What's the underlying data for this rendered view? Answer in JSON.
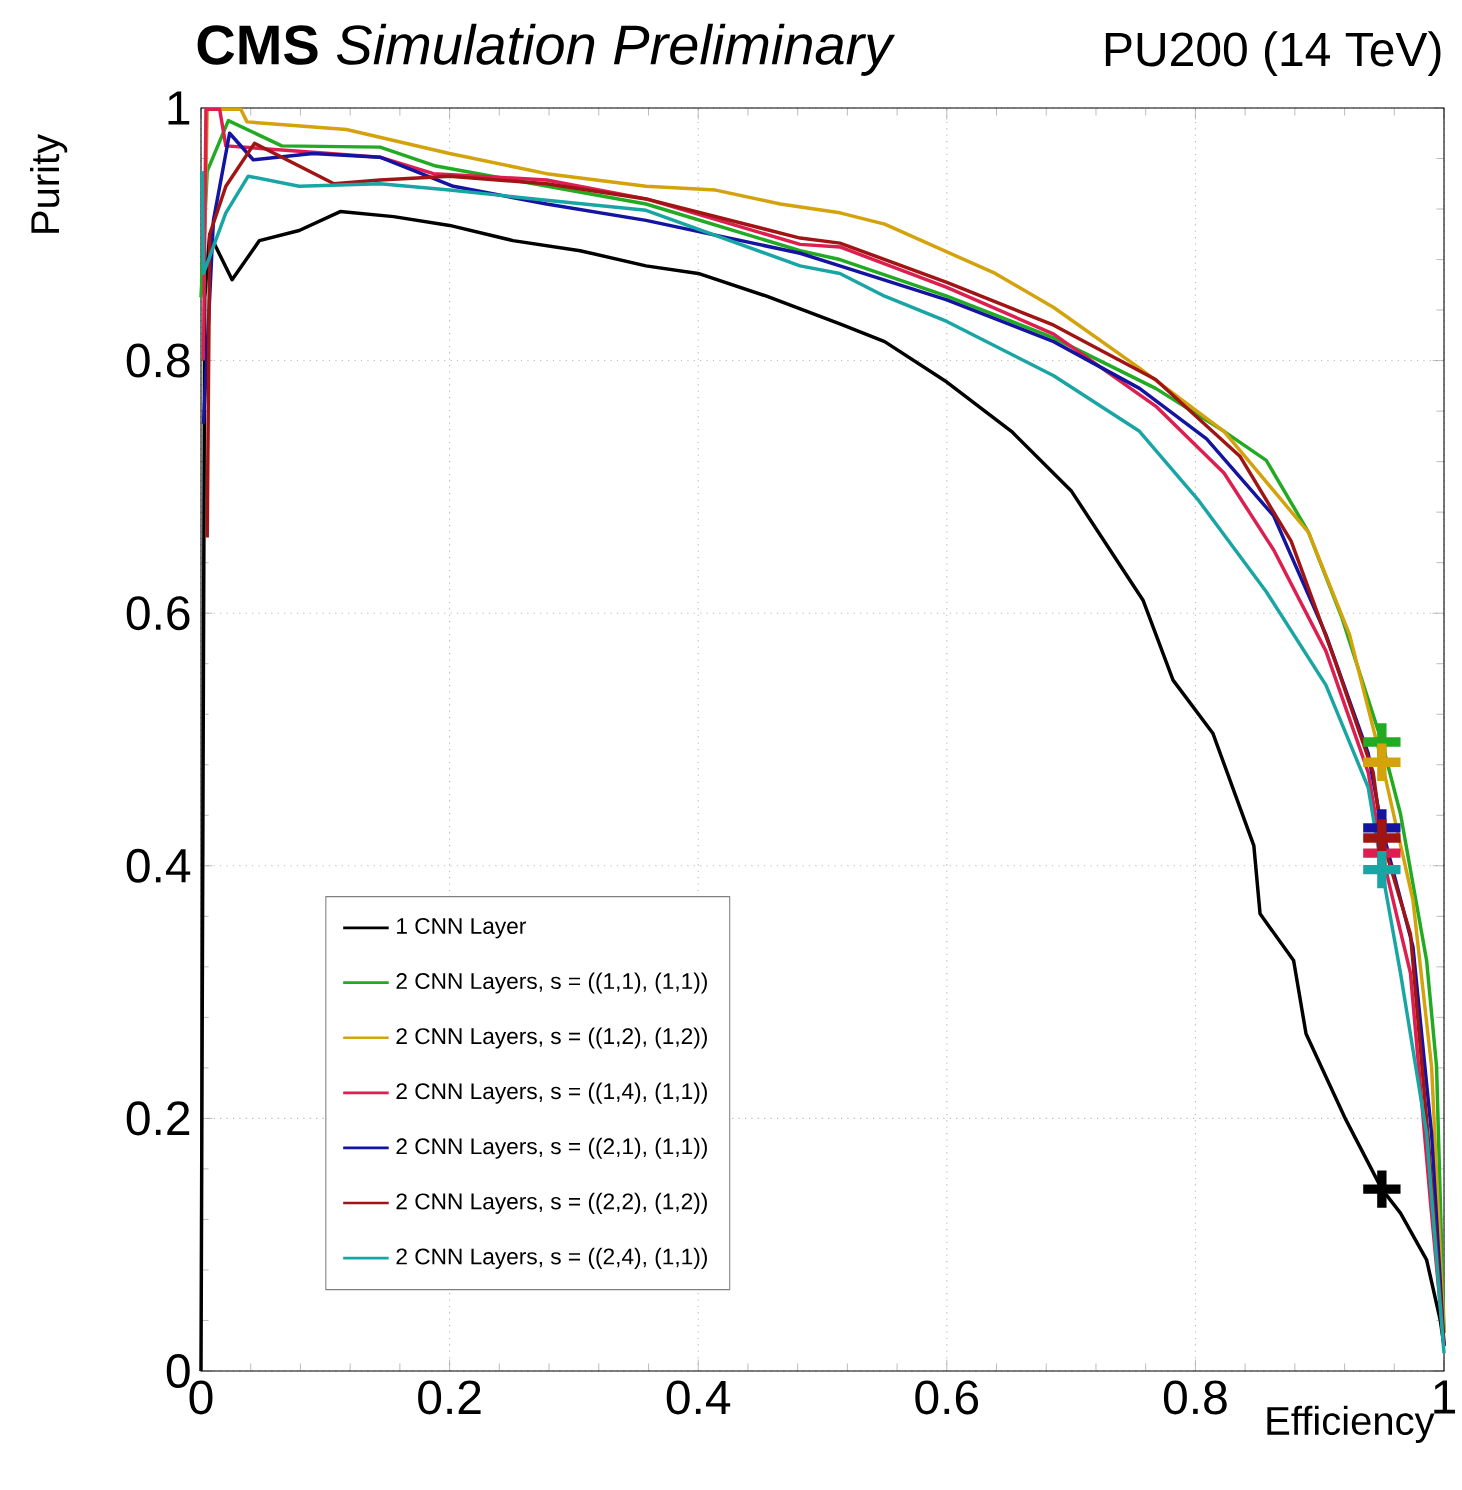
{
  "chart_data": {
    "type": "line",
    "title": "**CMS** *Simulation Preliminary*",
    "subtitle": "PU200 (14 TeV)",
    "xlabel": "Efficiency",
    "ylabel": "Purity",
    "xlim": [
      0,
      1
    ],
    "ylim": [
      0,
      1
    ],
    "xticks": [
      0,
      0.2,
      0.4,
      0.6,
      0.8,
      1
    ],
    "yticks": [
      0,
      0.2,
      0.4,
      0.6,
      0.8,
      1
    ],
    "grid": true,
    "legend": "bottom left",
    "line_style": "solid",
    "series": [
      {
        "name": "1 CNN Layer",
        "color": "#000000",
        "x": [
          0,
          0.003,
          0.007,
          0.025,
          0.047,
          0.079,
          0.112,
          0.155,
          0.2,
          0.251,
          0.305,
          0.358,
          0.4,
          0.455,
          0.514,
          0.55,
          0.6,
          0.652,
          0.7,
          0.758,
          0.782,
          0.814,
          0.847,
          0.852,
          0.879,
          0.889,
          0.921,
          0.95,
          0.965,
          0.986,
          0.997,
          1
        ],
        "values": [
          0,
          0.85,
          0.9,
          0.864,
          0.895,
          0.903,
          0.918,
          0.914,
          0.907,
          0.895,
          0.887,
          0.875,
          0.869,
          0.851,
          0.829,
          0.815,
          0.783,
          0.744,
          0.697,
          0.61,
          0.547,
          0.505,
          0.416,
          0.362,
          0.325,
          0.267,
          0.199,
          0.144,
          0.125,
          0.088,
          0.04,
          0.02
        ]
      },
      {
        "name": "2 CNN Layers, s = ((1,1), (1,1))",
        "color": "#22aa22",
        "x": [
          0,
          0.005,
          0.022,
          0.065,
          0.144,
          0.189,
          0.251,
          0.358,
          0.482,
          0.514,
          0.6,
          0.686,
          0.768,
          0.823,
          0.857,
          0.891,
          0.918,
          0.95,
          0.965,
          0.986,
          0.994,
          1
        ],
        "values": [
          0.85,
          0.95,
          0.99,
          0.97,
          0.969,
          0.954,
          0.943,
          0.924,
          0.887,
          0.88,
          0.851,
          0.818,
          0.778,
          0.744,
          0.721,
          0.664,
          0.596,
          0.498,
          0.441,
          0.325,
          0.241,
          0.03
        ]
      },
      {
        "name": "2 CNN Layers, s = ((1,2), (1,2))",
        "color": "#d4a20b",
        "x": [
          0.003,
          0.005,
          0.032,
          0.037,
          0.117,
          0.2,
          0.278,
          0.358,
          0.414,
          0.466,
          0.514,
          0.55,
          0.639,
          0.686,
          0.755,
          0.823,
          0.891,
          0.924,
          0.95,
          0.975,
          0.99,
          1
        ],
        "values": [
          0.9,
          0.999,
          0.999,
          0.989,
          0.983,
          0.964,
          0.948,
          0.938,
          0.935,
          0.924,
          0.917,
          0.908,
          0.869,
          0.842,
          0.794,
          0.744,
          0.664,
          0.583,
          0.482,
          0.373,
          0.241,
          0.03
        ]
      },
      {
        "name": "2 CNN Layers, s = ((1,4), (1,1))",
        "color": "#dc1e50",
        "x": [
          0.002,
          0.004,
          0.015,
          0.02,
          0.09,
          0.144,
          0.187,
          0.278,
          0.358,
          0.482,
          0.514,
          0.6,
          0.686,
          0.768,
          0.823,
          0.863,
          0.905,
          0.939,
          0.95,
          0.973,
          0.989,
          1
        ],
        "values": [
          0.8,
          0.999,
          0.999,
          0.97,
          0.965,
          0.961,
          0.948,
          0.943,
          0.928,
          0.892,
          0.89,
          0.858,
          0.821,
          0.764,
          0.711,
          0.65,
          0.57,
          0.474,
          0.41,
          0.315,
          0.135,
          0.02
        ]
      },
      {
        "name": "2 CNN Layers, s = ((2,1), (1,1))",
        "color": "#1414a0",
        "x": [
          0.002,
          0.01,
          0.023,
          0.042,
          0.09,
          0.144,
          0.203,
          0.278,
          0.358,
          0.482,
          0.514,
          0.6,
          0.686,
          0.755,
          0.809,
          0.863,
          0.905,
          0.939,
          0.95,
          0.975,
          0.99,
          1
        ],
        "values": [
          0.75,
          0.911,
          0.98,
          0.959,
          0.964,
          0.961,
          0.938,
          0.924,
          0.911,
          0.885,
          0.875,
          0.848,
          0.815,
          0.778,
          0.738,
          0.677,
          0.583,
          0.489,
          0.43,
          0.336,
          0.188,
          0.02
        ]
      },
      {
        "name": "2 CNN Layers, s = ((2,2), (1,2))",
        "color": "#a01414",
        "x": [
          0.005,
          0.007,
          0.02,
          0.043,
          0.107,
          0.144,
          0.2,
          0.278,
          0.358,
          0.482,
          0.514,
          0.6,
          0.686,
          0.768,
          0.836,
          0.877,
          0.912,
          0.943,
          0.95,
          0.973,
          0.987,
          1
        ],
        "values": [
          0.66,
          0.9,
          0.938,
          0.972,
          0.94,
          0.943,
          0.946,
          0.94,
          0.928,
          0.897,
          0.893,
          0.862,
          0.828,
          0.785,
          0.724,
          0.657,
          0.563,
          0.474,
          0.422,
          0.346,
          0.188,
          0.02
        ]
      },
      {
        "name": "2 CNN Layers, s = ((2,4), (1,1))",
        "color": "#1aa5a5",
        "x": [
          0.001,
          0.002,
          0.02,
          0.038,
          0.079,
          0.144,
          0.2,
          0.278,
          0.358,
          0.482,
          0.514,
          0.55,
          0.6,
          0.686,
          0.755,
          0.802,
          0.857,
          0.905,
          0.939,
          0.95,
          0.965,
          0.986,
          1
        ],
        "values": [
          0.95,
          0.869,
          0.917,
          0.946,
          0.938,
          0.94,
          0.935,
          0.927,
          0.919,
          0.875,
          0.869,
          0.851,
          0.831,
          0.788,
          0.744,
          0.69,
          0.617,
          0.543,
          0.462,
          0.397,
          0.315,
          0.188,
          0.014
        ]
      },
      {
        "type": "scatter",
        "marker": "cross",
        "color": "#000000",
        "x": [
          0.95
        ],
        "values": [
          0.144
        ]
      },
      {
        "type": "scatter",
        "marker": "cross",
        "color": "#22aa22",
        "x": [
          0.95
        ],
        "values": [
          0.498
        ]
      },
      {
        "type": "scatter",
        "marker": "cross",
        "color": "#d4a20b",
        "x": [
          0.95
        ],
        "values": [
          0.482
        ]
      },
      {
        "type": "scatter",
        "marker": "cross",
        "color": "#dc1e50",
        "x": [
          0.95
        ],
        "values": [
          0.41
        ]
      },
      {
        "type": "scatter",
        "marker": "cross",
        "color": "#1414a0",
        "x": [
          0.95
        ],
        "values": [
          0.43
        ]
      },
      {
        "type": "scatter",
        "marker": "cross",
        "color": "#a01414",
        "x": [
          0.95
        ],
        "values": [
          0.422
        ]
      },
      {
        "type": "scatter",
        "marker": "cross",
        "color": "#1aa5a5",
        "x": [
          0.95
        ],
        "values": [
          0.397
        ]
      }
    ]
  }
}
